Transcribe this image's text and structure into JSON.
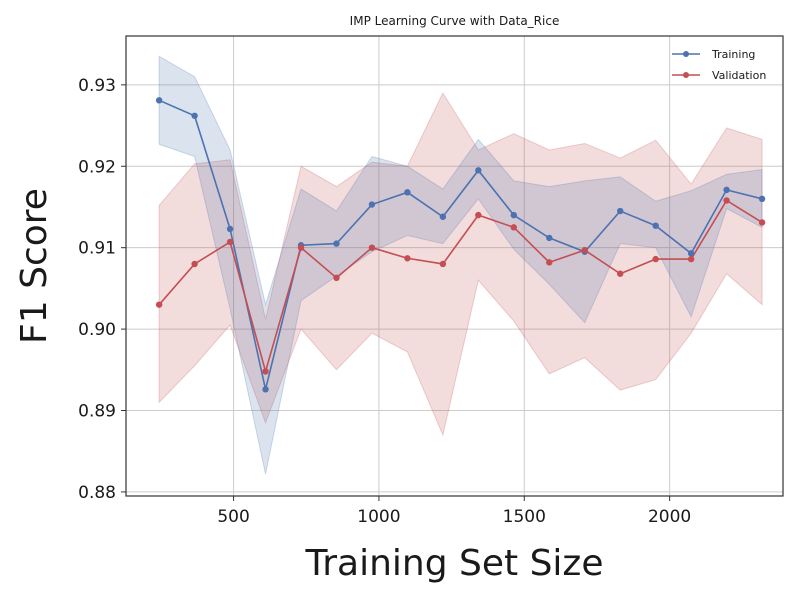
{
  "chart_data": {
    "type": "line",
    "title": "IMP Learning Curve with Data_Rice",
    "xlabel": "Training Set Size",
    "ylabel": "F1 Score",
    "xlim": [
      130,
      2390
    ],
    "ylim": [
      0.8795,
      0.936
    ],
    "xticks": [
      500,
      1000,
      1500,
      2000
    ],
    "xtick_labels": [
      "500",
      "1000",
      "1500",
      "2000"
    ],
    "yticks": [
      0.88,
      0.89,
      0.9,
      0.91,
      0.92,
      0.93
    ],
    "ytick_labels": [
      "0.88",
      "0.89",
      "0.90",
      "0.91",
      "0.92",
      "0.93"
    ],
    "grid": true,
    "legend_position": "top-right",
    "x": [
      244,
      366,
      488,
      610,
      732,
      854,
      976,
      1098,
      1220,
      1342,
      1464,
      1586,
      1708,
      1830,
      1952,
      2074,
      2196,
      2318
    ],
    "series": [
      {
        "name": "Training",
        "color": "#4c72b0",
        "values": [
          0.9281,
          0.9262,
          0.9123,
          0.8926,
          0.9103,
          0.9105,
          0.9153,
          0.9168,
          0.9138,
          0.9195,
          0.914,
          0.9112,
          0.9095,
          0.9145,
          0.9127,
          0.9093,
          0.9171,
          0.916
        ],
        "lower": [
          0.9227,
          0.9212,
          0.9025,
          0.8822,
          0.9035,
          0.9065,
          0.9095,
          0.9115,
          0.9105,
          0.916,
          0.9098,
          0.9055,
          0.9008,
          0.9105,
          0.91,
          0.9015,
          0.9148,
          0.9125
        ],
        "upper": [
          0.9335,
          0.931,
          0.922,
          0.903,
          0.9172,
          0.9145,
          0.9212,
          0.92,
          0.9172,
          0.9233,
          0.9182,
          0.9175,
          0.9182,
          0.9187,
          0.9157,
          0.917,
          0.919,
          0.9196
        ]
      },
      {
        "name": "Validation",
        "color": "#c44e52",
        "values": [
          0.903,
          0.908,
          0.9107,
          0.8948,
          0.91,
          0.9063,
          0.91,
          0.9087,
          0.908,
          0.914,
          0.9125,
          0.9082,
          0.9097,
          0.9068,
          0.9086,
          0.9086,
          0.9158,
          0.9131
        ],
        "lower": [
          0.891,
          0.8955,
          0.9005,
          0.8885,
          0.9,
          0.895,
          0.8995,
          0.8972,
          0.887,
          0.906,
          0.901,
          0.8945,
          0.8965,
          0.8925,
          0.8938,
          0.8995,
          0.9068,
          0.903
        ],
        "upper": [
          0.9152,
          0.9203,
          0.9208,
          0.9012,
          0.92,
          0.9175,
          0.9205,
          0.92,
          0.929,
          0.922,
          0.924,
          0.922,
          0.9228,
          0.921,
          0.9232,
          0.9178,
          0.9247,
          0.9233
        ]
      }
    ]
  }
}
